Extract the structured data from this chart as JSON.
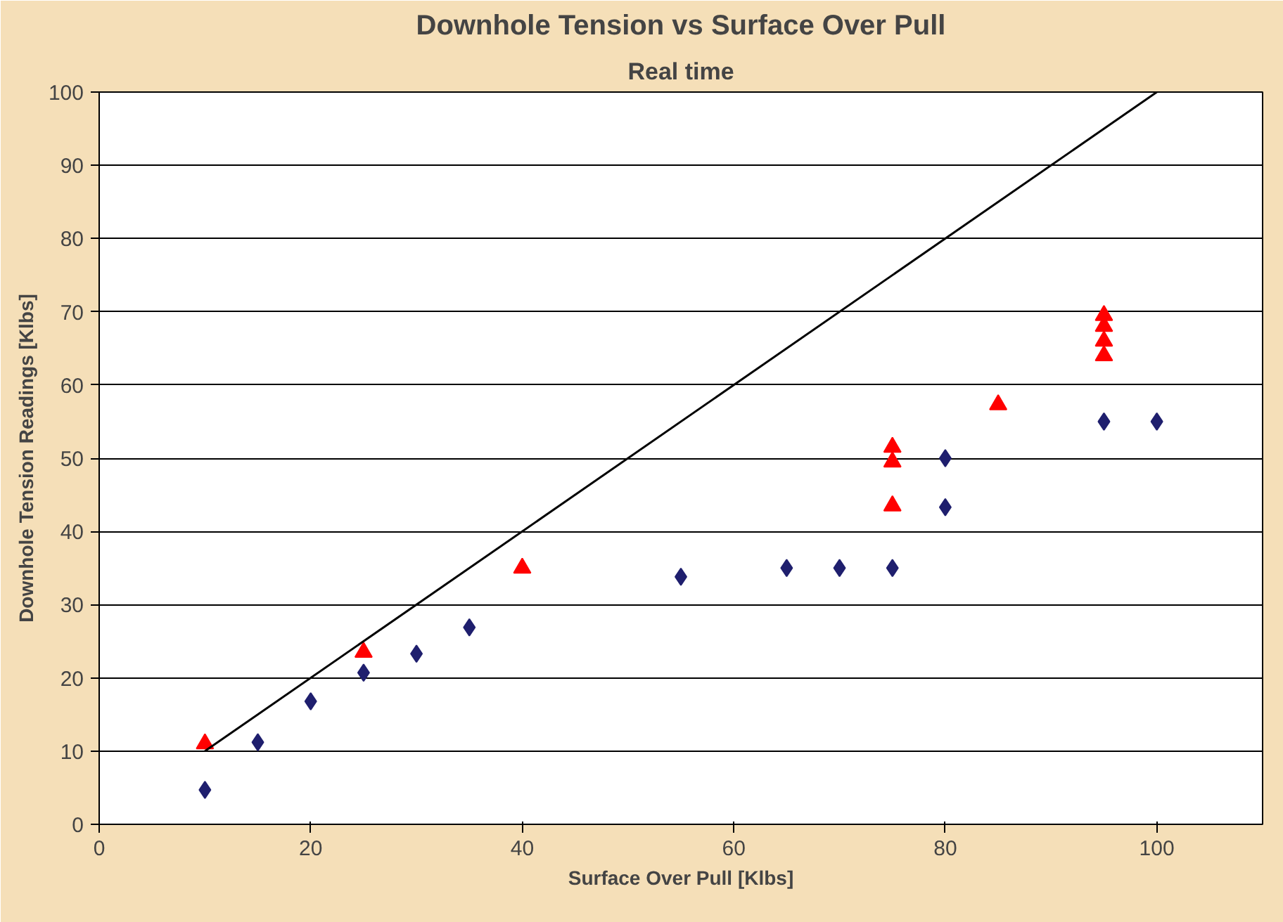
{
  "chart_data": {
    "type": "scatter",
    "title": "Downhole Tension vs Surface Over Pull",
    "subtitle": "Real time",
    "xlabel": "Surface Over Pull [Klbs]",
    "ylabel": "Downhole Tension Readings [Klbs]",
    "xlim": [
      0,
      110
    ],
    "xticks": [
      0,
      20,
      40,
      60,
      80,
      100
    ],
    "ylim": [
      0,
      100
    ],
    "yticks": [
      0,
      10,
      20,
      30,
      40,
      50,
      60,
      70,
      80,
      90,
      100
    ],
    "grid": "y",
    "series": [
      {
        "marker": "diamond",
        "color": "#1f1f6e",
        "x": [
          10,
          15,
          20,
          25,
          30,
          35,
          55,
          65,
          70,
          75,
          80,
          80,
          95,
          100
        ],
        "values": [
          4.7,
          11.2,
          16.8,
          20.7,
          23.3,
          26.9,
          33.8,
          35,
          35,
          35,
          50,
          43.3,
          55,
          55
        ]
      },
      {
        "marker": "triangle",
        "color": "#ff0000",
        "x": [
          10,
          25,
          40,
          75,
          75,
          75,
          85,
          95,
          95,
          95,
          95
        ],
        "values": [
          11,
          23.5,
          35,
          51.5,
          49.5,
          43.5,
          57.3,
          69.5,
          68,
          66,
          64
        ]
      },
      {
        "type": "line",
        "color": "#000000",
        "x": [
          10,
          100
        ],
        "values": [
          10,
          100
        ]
      }
    ]
  }
}
